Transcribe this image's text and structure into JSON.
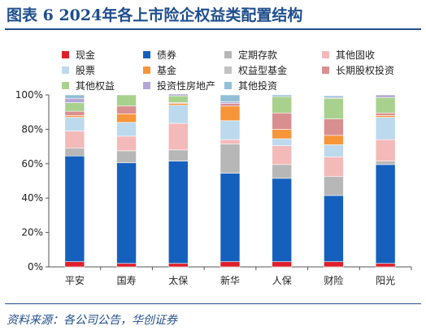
{
  "header": {
    "title": "图表 6   2024年各上市险企权益类配置结构"
  },
  "source": "资料来源：各公司公告，华创证券",
  "chart_data": {
    "type": "bar",
    "stacked": true,
    "categories": [
      "平安",
      "国寿",
      "太保",
      "新华",
      "人保",
      "财险",
      "阳光"
    ],
    "ylim": [
      0,
      100
    ],
    "yticks": [
      "0%",
      "20%",
      "40%",
      "60%",
      "80%",
      "100%"
    ],
    "legend_position": "top",
    "series": [
      {
        "name": "现金",
        "color": "#e01e2b",
        "values": [
          3,
          2,
          2,
          3,
          3,
          3,
          2
        ]
      },
      {
        "name": "债券",
        "color": "#1560bd",
        "values": [
          61.5,
          58.5,
          59.5,
          51.5,
          48.5,
          38.5,
          57.5
        ]
      },
      {
        "name": "定期存款",
        "color": "#b7b7b7",
        "values": [
          4.5,
          7,
          6.5,
          17,
          8,
          11,
          2
        ]
      },
      {
        "name": "其他固收",
        "color": "#f4b9b9",
        "values": [
          10,
          8.5,
          15.5,
          2.5,
          11,
          11.5,
          12.5
        ]
      },
      {
        "name": "股票",
        "color": "#bcd9ee",
        "values": [
          8,
          8,
          10.5,
          11,
          4,
          7,
          13
        ]
      },
      {
        "name": "基金",
        "color": "#f7953a",
        "values": [
          1,
          5,
          1,
          8.5,
          5.5,
          5.5,
          1
        ]
      },
      {
        "name": "权益型基金",
        "color": "#c2c2c2",
        "values": [
          0,
          0,
          0,
          0,
          0,
          0,
          0
        ]
      },
      {
        "name": "长期股权投资",
        "color": "#d98f8f",
        "values": [
          2.5,
          4.5,
          0.5,
          1.5,
          9.5,
          9.5,
          1.5
        ]
      },
      {
        "name": "其他权益",
        "color": "#a9d18e",
        "values": [
          5,
          6.5,
          4,
          0,
          9.5,
          12,
          9
        ]
      },
      {
        "name": "投资性房地产",
        "color": "#b4a7d6",
        "values": [
          2.5,
          0,
          1,
          1,
          0,
          0.5,
          1.5
        ]
      },
      {
        "name": "其他投资",
        "color": "#92bfd6",
        "values": [
          2,
          0,
          0,
          4,
          1,
          1,
          0
        ]
      }
    ]
  }
}
